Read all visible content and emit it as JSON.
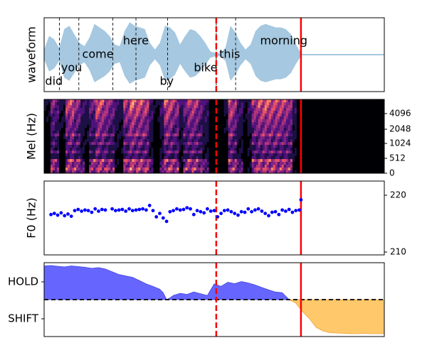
{
  "chart_data": [
    {
      "type": "area",
      "panel": "waveform",
      "ylabel": "waveform",
      "words": [
        "did",
        "you",
        "come",
        "here",
        "by",
        "bike",
        "this",
        "morning"
      ],
      "word_boundaries": [
        0.045,
        0.102,
        0.202,
        0.27,
        0.363,
        0.506,
        0.563
      ],
      "dashed_marker": 0.506,
      "solid_marker": 0.755,
      "audio_end": 0.755,
      "envelope": [
        0.15,
        0.55,
        0.45,
        0.2,
        0.75,
        0.85,
        0.6,
        0.35,
        0.25,
        0.5,
        0.9,
        0.8,
        0.7,
        0.55,
        0.3,
        0.25,
        0.7,
        0.95,
        0.85,
        0.8,
        0.75,
        0.35,
        0.15,
        0.35,
        0.85,
        0.8,
        0.65,
        0.3,
        0.55,
        0.75,
        0.7,
        0.55,
        0.35,
        0.1,
        0.05,
        0.05,
        0.2,
        0.85,
        0.65,
        0.35,
        0.15,
        0.3,
        0.7,
        0.85,
        0.9,
        0.85,
        0.8,
        0.8,
        0.75,
        0.6,
        0.3,
        0.05
      ],
      "color": "#a6c8e0",
      "line_color": "#ff0000"
    },
    {
      "type": "heatmap",
      "panel": "mel",
      "ylabel": "Mel (Hz)",
      "yticks": [
        "4096",
        "2048",
        "1024",
        "512",
        "0"
      ],
      "content_end": 0.755,
      "colormap": "magma"
    },
    {
      "type": "scatter",
      "panel": "f0",
      "ylabel": "F0 (Hz)",
      "yticks": [
        "220",
        "210"
      ],
      "ylim": [
        209.5,
        222.5
      ],
      "color": "#0000ff",
      "x": [
        0.02,
        0.03,
        0.04,
        0.05,
        0.06,
        0.07,
        0.08,
        0.09,
        0.1,
        0.11,
        0.12,
        0.13,
        0.14,
        0.15,
        0.16,
        0.17,
        0.18,
        0.2,
        0.21,
        0.22,
        0.23,
        0.24,
        0.25,
        0.26,
        0.27,
        0.28,
        0.29,
        0.3,
        0.31,
        0.32,
        0.33,
        0.34,
        0.35,
        0.36,
        0.37,
        0.38,
        0.39,
        0.4,
        0.41,
        0.42,
        0.43,
        0.44,
        0.45,
        0.46,
        0.47,
        0.48,
        0.49,
        0.5,
        0.51,
        0.52,
        0.53,
        0.54,
        0.55,
        0.56,
        0.57,
        0.58,
        0.59,
        0.6,
        0.61,
        0.62,
        0.63,
        0.64,
        0.65,
        0.66,
        0.67,
        0.68,
        0.69,
        0.7,
        0.71,
        0.72,
        0.73,
        0.74,
        0.75,
        0.755
      ],
      "y": [
        216.6,
        216.8,
        216.5,
        216.9,
        216.4,
        216.7,
        216.3,
        217.3,
        217.5,
        217.2,
        217.4,
        217.3,
        217.0,
        217.6,
        217.2,
        217.5,
        217.4,
        217.6,
        217.3,
        217.4,
        217.5,
        217.2,
        217.6,
        217.3,
        217.4,
        217.5,
        217.6,
        217.4,
        218.2,
        217.3,
        216.2,
        216.8,
        216.0,
        215.4,
        217.1,
        217.3,
        217.6,
        217.4,
        217.5,
        217.8,
        217.6,
        216.6,
        217.3,
        217.1,
        216.9,
        217.6,
        217.2,
        217.3,
        216.2,
        216.8,
        217.3,
        217.4,
        217.1,
        216.8,
        216.5,
        217.1,
        217.0,
        217.6,
        217.1,
        217.4,
        217.6,
        217.2,
        216.8,
        216.4,
        217.0,
        217.1,
        216.6,
        217.4,
        217.2,
        217.5,
        217.0,
        217.3,
        217.4,
        219.2
      ]
    },
    {
      "type": "area",
      "panel": "turn",
      "yticks": [
        "HOLD",
        "SHIFT"
      ],
      "hold_color": "#6666ff",
      "shift_color": "#ffc86b",
      "hold_x": [
        0.0,
        0.02,
        0.04,
        0.06,
        0.08,
        0.1,
        0.12,
        0.14,
        0.16,
        0.18,
        0.2,
        0.22,
        0.24,
        0.26,
        0.28,
        0.3,
        0.32,
        0.34,
        0.35,
        0.36,
        0.37,
        0.38,
        0.4,
        0.42,
        0.44,
        0.46,
        0.48,
        0.5,
        0.52,
        0.54,
        0.56,
        0.58,
        0.6,
        0.62,
        0.64,
        0.66,
        0.68,
        0.7,
        0.72
      ],
      "hold_y": [
        0.97,
        0.98,
        0.96,
        0.94,
        0.97,
        0.95,
        0.93,
        0.9,
        0.92,
        0.88,
        0.8,
        0.72,
        0.68,
        0.64,
        0.55,
        0.45,
        0.38,
        0.3,
        0.2,
        0.0,
        0.05,
        0.12,
        0.18,
        0.15,
        0.22,
        0.17,
        0.12,
        0.45,
        0.38,
        0.5,
        0.46,
        0.52,
        0.48,
        0.42,
        0.35,
        0.28,
        0.22,
        0.2,
        0.0
      ],
      "shift_x": [
        0.72,
        0.74,
        0.76,
        0.78,
        0.8,
        0.82,
        0.84,
        0.86,
        0.88,
        0.9,
        0.92,
        0.94,
        0.96,
        0.98,
        1.0
      ],
      "shift_y": [
        0.0,
        0.1,
        0.35,
        0.55,
        0.8,
        0.9,
        0.95,
        0.96,
        0.97,
        0.98,
        0.98,
        0.97,
        0.98,
        0.98,
        0.98
      ],
      "zero_line": "dashed"
    }
  ]
}
